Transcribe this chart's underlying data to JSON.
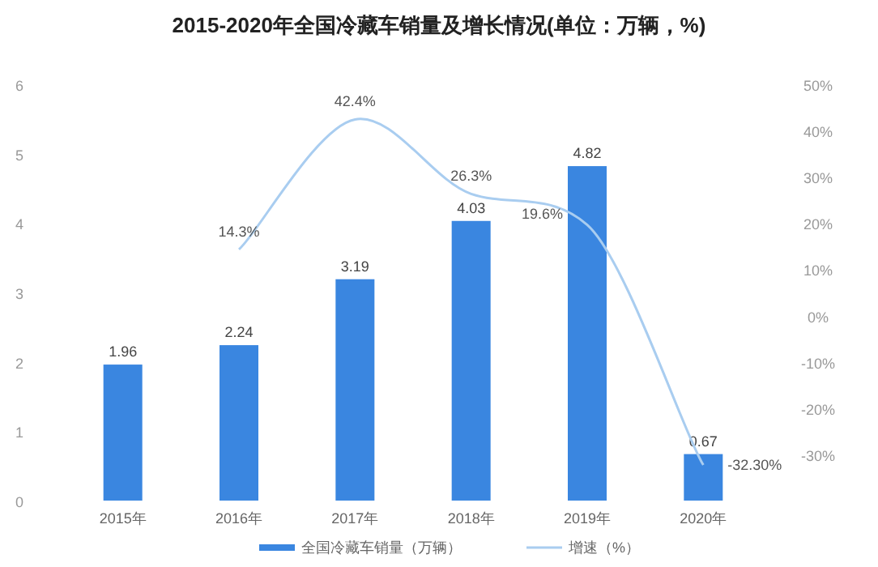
{
  "chart_data": {
    "type": "bar",
    "title": "2015-2020年全国冷藏车销量及增长情况(单位：万辆，%)",
    "categories": [
      "2015年",
      "2016年",
      "2017年",
      "2018年",
      "2019年",
      "2020年"
    ],
    "series": [
      {
        "name": "全国冷藏车销量（万辆）",
        "color": "#3a86e0",
        "values": [
          1.96,
          2.24,
          3.19,
          4.03,
          4.82,
          0.67
        ],
        "value_labels": [
          "1.96",
          "2.24",
          "3.19",
          "4.03",
          "4.82",
          "0.67"
        ]
      },
      {
        "name": "增速（%）",
        "type": "line",
        "axis": "y2",
        "color": "#a9cdf0",
        "values": [
          null,
          14.3,
          42.4,
          26.3,
          19.6,
          -32.3
        ],
        "value_labels": [
          null,
          "14.3%",
          "42.4%",
          "26.3%",
          "19.6%",
          "-32.30%"
        ]
      }
    ],
    "ylim": [
      0,
      6
    ],
    "yticks": [
      0,
      1,
      2,
      3,
      4,
      5,
      6
    ],
    "y2lim": [
      -40,
      50
    ],
    "y2ticks": [
      {
        "value": -30,
        "label": "-30%"
      },
      {
        "value": -20,
        "label": "-20%"
      },
      {
        "value": -10,
        "label": "-10%"
      },
      {
        "value": 0,
        "label": "0%"
      },
      {
        "value": 10,
        "label": "10%"
      },
      {
        "value": 20,
        "label": "20%"
      },
      {
        "value": 30,
        "label": "30%"
      },
      {
        "value": 40,
        "label": "40%"
      },
      {
        "value": 50,
        "label": "50%"
      }
    ],
    "grid": false,
    "legend": "bottom"
  }
}
